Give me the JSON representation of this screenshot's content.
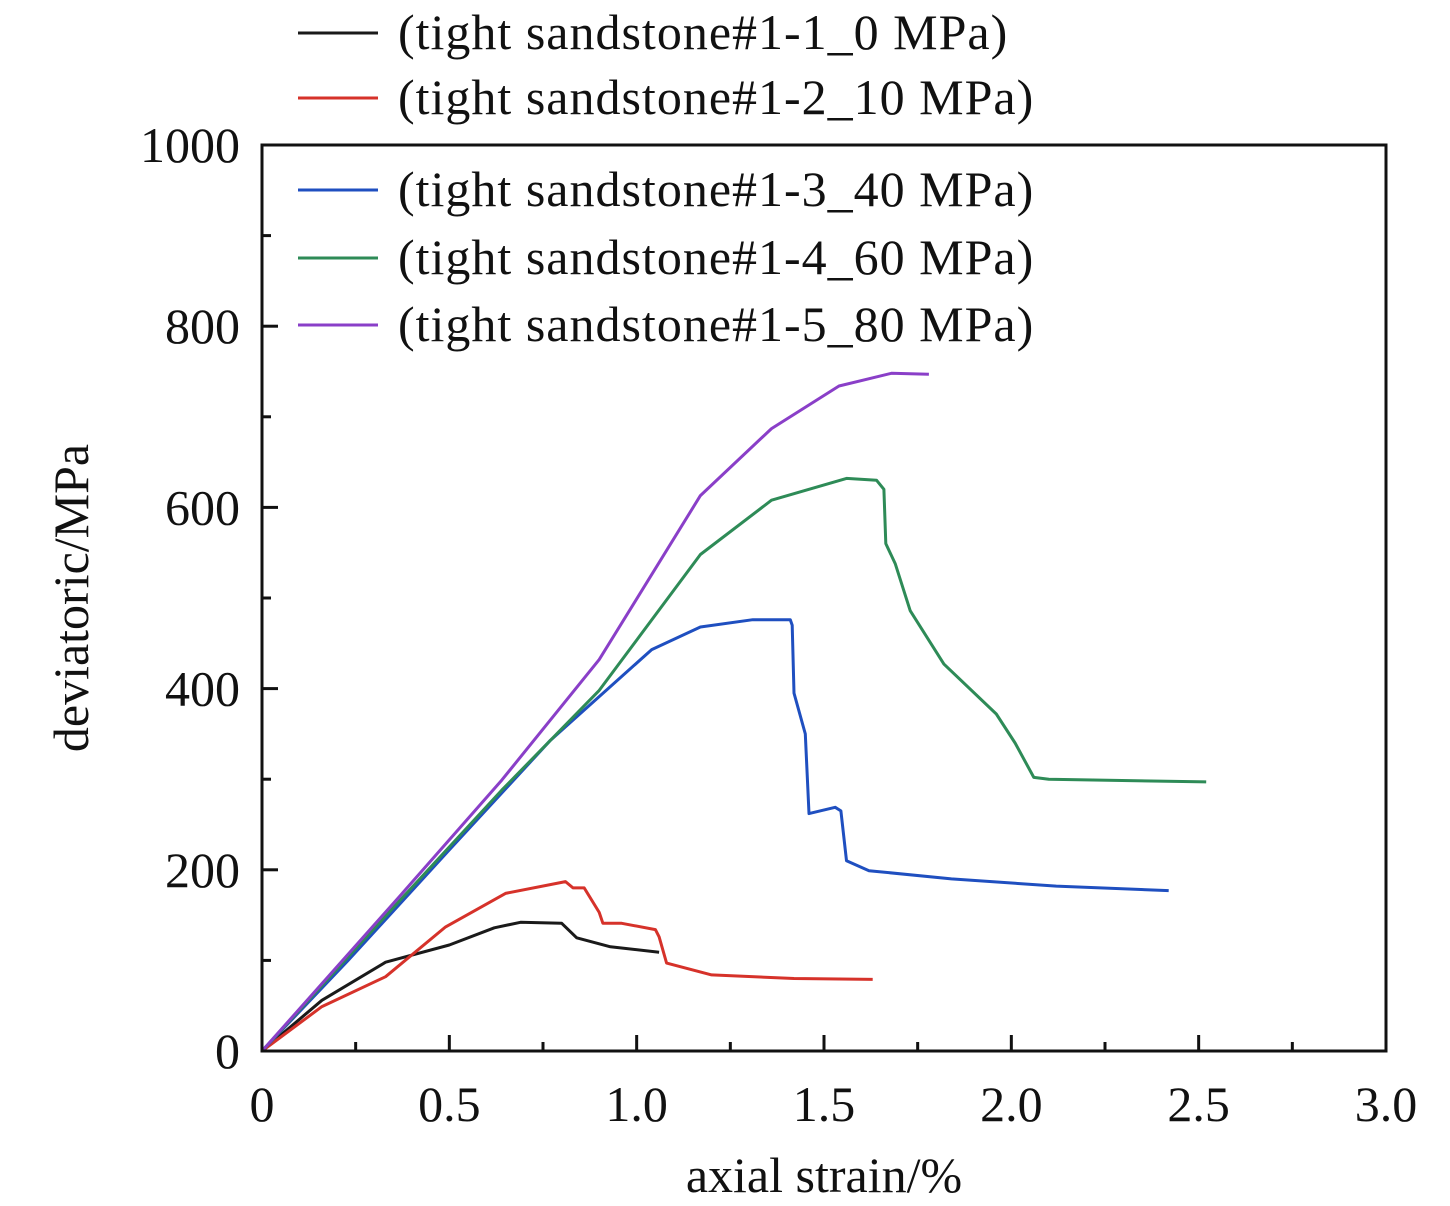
{
  "chart_data": {
    "type": "line",
    "xlabel": "axial strain/%",
    "ylabel": "deviatoric/MPa",
    "xlim": [
      0,
      3.0
    ],
    "ylim": [
      0,
      1000
    ],
    "xticks": [
      0,
      0.5,
      1.0,
      1.5,
      2.0,
      2.5,
      3.0
    ],
    "xtick_labels": [
      "0",
      "0.5",
      "1.0",
      "1.5",
      "2.0",
      "2.5",
      "3.0"
    ],
    "yticks": [
      0,
      200,
      400,
      600,
      800,
      1000
    ],
    "ytick_labels": [
      "0",
      "200",
      "400",
      "600",
      "800",
      "1000"
    ],
    "grid": false,
    "legend_placement": "top-left",
    "series": [
      {
        "name": "(tight sandstone#1-1_0 MPa)",
        "color": "#1a1a1a",
        "x": [
          0,
          0.16,
          0.33,
          0.5,
          0.62,
          0.69,
          0.8,
          0.84,
          0.93,
          1.06
        ],
        "y": [
          0,
          56,
          98,
          117,
          136,
          142,
          141,
          125,
          115,
          109
        ]
      },
      {
        "name": "(tight sandstone#1-2_10 MPa)",
        "color": "#d6322a",
        "x": [
          0,
          0.16,
          0.33,
          0.49,
          0.65,
          0.81,
          0.83,
          0.86,
          0.9,
          0.91,
          0.96,
          1.05,
          1.06,
          1.08,
          1.2,
          1.42,
          1.63
        ],
        "y": [
          0,
          49,
          82,
          137,
          174,
          187,
          180,
          180,
          153,
          141,
          141,
          134,
          126,
          97,
          84,
          80,
          79
        ]
      },
      {
        "name": "(tight sandstone#1-3_40 MPa)",
        "color": "#1f4fc0",
        "x": [
          0,
          0.23,
          0.5,
          0.77,
          1.04,
          1.17,
          1.31,
          1.41,
          1.415,
          1.42,
          1.45,
          1.46,
          1.53,
          1.545,
          1.56,
          1.62,
          1.84,
          2.12,
          2.42
        ],
        "y": [
          0,
          100,
          222,
          343,
          443,
          468,
          476,
          476,
          470,
          395,
          350,
          262,
          269,
          265,
          210,
          199,
          190,
          182,
          177
        ]
      },
      {
        "name": "(tight sandstone#1-4_60 MPa)",
        "color": "#2e8b57",
        "x": [
          0,
          0.37,
          0.64,
          0.9,
          1.17,
          1.36,
          1.56,
          1.64,
          1.66,
          1.665,
          1.69,
          1.73,
          1.82,
          1.96,
          2.01,
          2.06,
          2.1,
          2.52
        ],
        "y": [
          0,
          167,
          288,
          398,
          548,
          608,
          632,
          630,
          620,
          560,
          538,
          486,
          427,
          372,
          340,
          302,
          300,
          297
        ]
      },
      {
        "name": "(tight sandstone#1-5_80 MPa)",
        "color": "#8a3fc8",
        "x": [
          0,
          0.37,
          0.64,
          0.9,
          1.17,
          1.36,
          1.54,
          1.68,
          1.78
        ],
        "y": [
          0,
          172,
          299,
          432,
          613,
          687,
          734,
          748,
          747
        ]
      }
    ]
  }
}
